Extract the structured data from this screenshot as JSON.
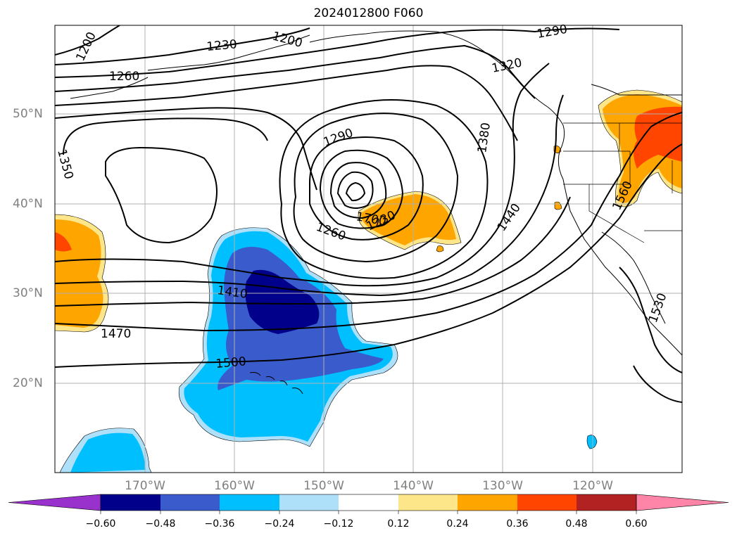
{
  "title": "2024012800 F060",
  "lat_labels": [
    "50°N",
    "40°N",
    "30°N",
    "20°N"
  ],
  "lon_labels": [
    "170°W",
    "160°W",
    "150°W",
    "140°W",
    "130°W",
    "120°W"
  ],
  "contour_labels": [
    "1200",
    "1230",
    "1260",
    "1200",
    "1290",
    "1320",
    "1350",
    "1290",
    "1380",
    "1260",
    "1700",
    "1230",
    "1440",
    "1560",
    "1410",
    "1470",
    "1500",
    "1530"
  ],
  "colorbar": {
    "ticks": [
      "−0.60",
      "−0.48",
      "−0.36",
      "−0.24",
      "−0.12",
      "0.12",
      "0.24",
      "0.36",
      "0.48",
      "0.60"
    ],
    "colors": [
      "#9932cc",
      "#00008b",
      "#3a5bcc",
      "#00bfff",
      "#aee0fa",
      "#ffffff",
      "#fde68a",
      "#ffa500",
      "#ff4500",
      "#b22222",
      "#ff85a8"
    ]
  }
}
